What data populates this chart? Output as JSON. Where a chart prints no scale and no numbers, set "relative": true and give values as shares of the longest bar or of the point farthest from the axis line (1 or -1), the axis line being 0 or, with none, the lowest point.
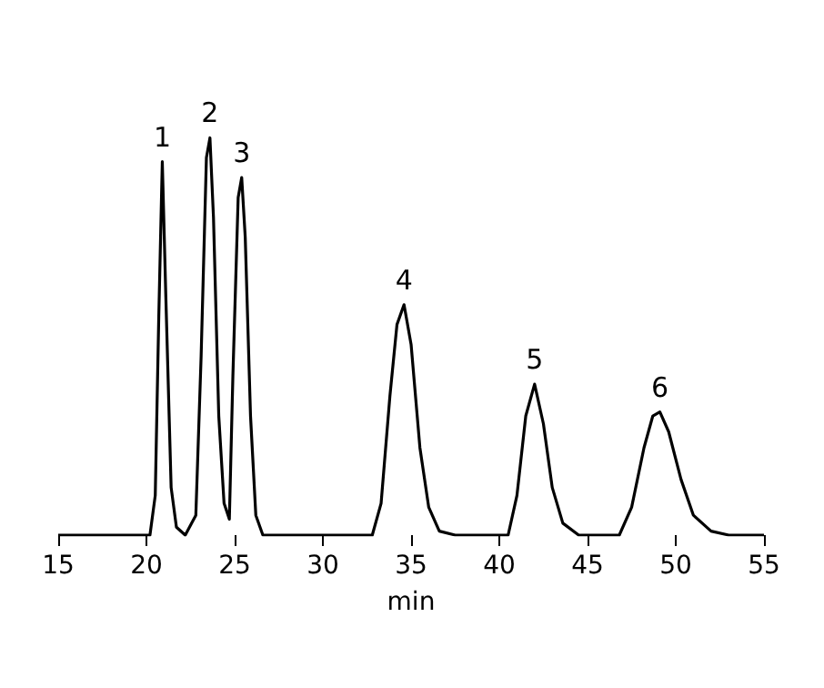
{
  "chart_data": {
    "type": "line",
    "relative": true,
    "xlabel": "min",
    "xlim": [
      15,
      55
    ],
    "xticks": [
      15,
      20,
      25,
      30,
      35,
      40,
      45,
      50,
      55
    ],
    "grid": false,
    "marker": "none",
    "line_style": "solid",
    "x": [
      15,
      20.2,
      20.5,
      20.7,
      20.9,
      21.1,
      21.4,
      21.7,
      22.2,
      22.8,
      23.1,
      23.4,
      23.6,
      23.8,
      24.1,
      24.4,
      24.7,
      24.9,
      25.2,
      25.4,
      25.6,
      25.9,
      26.2,
      26.6,
      32.8,
      33.3,
      33.8,
      34.2,
      34.6,
      35.0,
      35.5,
      36.0,
      36.6,
      37.5,
      40.5,
      41.0,
      41.5,
      42.0,
      42.5,
      43.0,
      43.6,
      44.5,
      46.8,
      47.5,
      48.2,
      48.7,
      49.1,
      49.6,
      50.3,
      51.0,
      52.0,
      53,
      55
    ],
    "series": [
      {
        "color": "#000000",
        "values": [
          0,
          0,
          0.1,
          0.55,
          0.94,
          0.6,
          0.12,
          0.02,
          0,
          0.05,
          0.45,
          0.95,
          1.0,
          0.8,
          0.3,
          0.08,
          0.04,
          0.4,
          0.85,
          0.9,
          0.75,
          0.3,
          0.05,
          0,
          0,
          0.08,
          0.35,
          0.53,
          0.58,
          0.48,
          0.22,
          0.07,
          0.01,
          0,
          0,
          0.1,
          0.3,
          0.38,
          0.28,
          0.12,
          0.03,
          0,
          0,
          0.07,
          0.22,
          0.3,
          0.31,
          0.26,
          0.14,
          0.05,
          0.01,
          0,
          0
        ]
      }
    ],
    "annotations": [
      {
        "text": "1",
        "x": 20.9,
        "y": 0.94
      },
      {
        "text": "2",
        "x": 23.6,
        "y": 1.0
      },
      {
        "text": "3",
        "x": 25.4,
        "y": 0.9
      },
      {
        "text": "4",
        "x": 34.6,
        "y": 0.58
      },
      {
        "text": "5",
        "x": 42.0,
        "y": 0.38
      },
      {
        "text": "6",
        "x": 49.1,
        "y": 0.31
      }
    ]
  }
}
